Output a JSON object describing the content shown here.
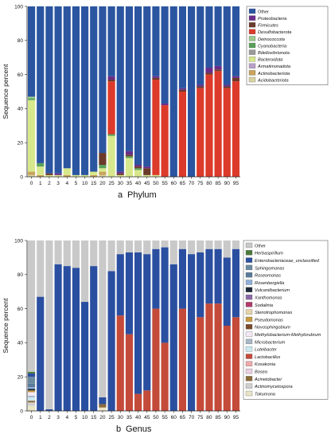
{
  "chart_data": [
    {
      "type": "bar",
      "stacked": true,
      "caption": "Phylum",
      "panel": "a",
      "ylabel": "Sequence percent",
      "ylim": [
        0,
        100
      ],
      "yticks": [
        0,
        20,
        40,
        60,
        80,
        100
      ],
      "categories": [
        "0",
        "1",
        "2",
        "3",
        "4",
        "5",
        "10",
        "15",
        "20",
        "25",
        "30",
        "35",
        "40",
        "45",
        "50",
        "55",
        "60",
        "65",
        "70",
        "75",
        "80",
        "85",
        "90",
        "95"
      ],
      "legend_position": "right",
      "series": [
        {
          "name": "Acidobacteriota",
          "color": "#d9d3a1",
          "values": [
            1,
            0,
            0,
            0,
            0,
            0,
            0,
            0,
            1,
            0,
            0,
            0,
            0,
            0,
            0,
            0,
            0,
            0,
            0,
            0,
            0,
            0,
            0,
            0
          ]
        },
        {
          "name": "Actinobacteriota",
          "color": "#c9a35a",
          "values": [
            2,
            1,
            0,
            0,
            1,
            0,
            0,
            1,
            2,
            0,
            0,
            0,
            0,
            0,
            0,
            0,
            0,
            0,
            0,
            0,
            0,
            0,
            0,
            0
          ]
        },
        {
          "name": "Armatimonadota",
          "color": "#b8a0c8",
          "values": [
            0,
            0,
            0,
            0,
            0,
            0,
            0,
            0,
            0,
            0,
            0,
            0,
            0,
            0,
            0,
            0,
            0,
            0,
            0,
            0,
            0,
            0,
            0,
            0
          ]
        },
        {
          "name": "Bacteroidota",
          "color": "#d7e88c",
          "values": [
            42,
            5,
            1,
            1,
            4,
            1,
            1,
            2,
            2,
            24,
            1,
            11,
            4,
            1,
            1,
            0,
            0,
            0,
            0,
            0,
            0,
            0,
            0,
            0
          ]
        },
        {
          "name": "Bdellovibrionota",
          "color": "#9a9a9a",
          "values": [
            0,
            0,
            0,
            0,
            0,
            0,
            0,
            0,
            0,
            0,
            0,
            0,
            0,
            0,
            0,
            0,
            0,
            0,
            0,
            0,
            0,
            0,
            0,
            0
          ]
        },
        {
          "name": "Cyanobacteria",
          "color": "#5aa15a",
          "values": [
            1,
            2,
            0,
            0,
            0,
            0,
            0,
            0,
            2,
            1,
            0,
            1,
            1,
            0,
            0,
            0,
            0,
            0,
            0,
            0,
            0,
            0,
            0,
            0
          ]
        },
        {
          "name": "Deinococcota",
          "color": "#9cc98f",
          "values": [
            1,
            0,
            0,
            0,
            0,
            0,
            0,
            0,
            0,
            0,
            0,
            0,
            0,
            0,
            0,
            0,
            0,
            0,
            0,
            0,
            0,
            0,
            0,
            0
          ]
        },
        {
          "name": "Desulfobacterota",
          "color": "#dc3a2a",
          "values": [
            0,
            0,
            0,
            0,
            0,
            0,
            0,
            0,
            0,
            31,
            0,
            0,
            0,
            0,
            56,
            42,
            0,
            50,
            0,
            52,
            60,
            62,
            52,
            56
          ]
        },
        {
          "name": "Firmicutes",
          "color": "#6b3a2a",
          "values": [
            0,
            0,
            1,
            0,
            0,
            0,
            0,
            0,
            7,
            1,
            1,
            1,
            1,
            4,
            1,
            0,
            0,
            1,
            0,
            1,
            1,
            1,
            1,
            2
          ]
        },
        {
          "name": "Proteobacteria",
          "color": "#6a2c8a",
          "values": [
            0,
            0,
            0,
            1,
            0,
            0,
            0,
            0,
            0,
            2,
            1,
            2,
            1,
            1,
            1,
            1,
            0,
            1,
            0,
            1,
            3,
            2,
            1,
            1
          ]
        },
        {
          "name": "Other",
          "color": "#2b55a0",
          "values": [
            53,
            92,
            98,
            98,
            95,
            99,
            99,
            97,
            86,
            41,
            97,
            85,
            93,
            94,
            41,
            57,
            100,
            48,
            100,
            46,
            36,
            35,
            46,
            41
          ]
        }
      ],
      "legend": [
        "Other",
        "Proteobacteria",
        "Firmicutes",
        "Desulfobacterota",
        "Deinococcota",
        "Cyanobacteria",
        "Bdellovibrionota",
        "Bacteroidota",
        "Armatimonadota",
        "Actinobacteriota",
        "Acidobacteriota"
      ]
    },
    {
      "type": "bar",
      "stacked": true,
      "caption": "Genus",
      "panel": "b",
      "ylabel": "Sequence percent",
      "ylim": [
        0,
        100
      ],
      "yticks": [
        0,
        20,
        40,
        60,
        80,
        100
      ],
      "categories": [
        "0",
        "1",
        "2",
        "3",
        "4",
        "5",
        "10",
        "15",
        "20",
        "25",
        "30",
        "35",
        "40",
        "45",
        "50",
        "55",
        "60",
        "65",
        "70",
        "75",
        "80",
        "85",
        "90",
        "95"
      ],
      "legend_position": "right",
      "series": [
        {
          "name": "Tokumona",
          "color": "#e9e4c4",
          "values": [
            3,
            0,
            0,
            0,
            0,
            0,
            0,
            0,
            2,
            0,
            0,
            0,
            0,
            0,
            0,
            0,
            0,
            0,
            0,
            0,
            0,
            0,
            0,
            0
          ]
        },
        {
          "name": "Actinomycetospora",
          "color": "#cfcfcf",
          "values": [
            2,
            0,
            0,
            0,
            0,
            0,
            0,
            0,
            0,
            0,
            0,
            0,
            0,
            0,
            0,
            0,
            0,
            0,
            0,
            0,
            0,
            0,
            0,
            0
          ]
        },
        {
          "name": "Acinetobacter",
          "color": "#8c6b3a",
          "values": [
            1,
            0,
            0,
            0,
            0,
            0,
            0,
            0,
            2,
            0,
            0,
            0,
            0,
            0,
            0,
            0,
            0,
            0,
            0,
            0,
            0,
            0,
            0,
            0
          ]
        },
        {
          "name": "Bosea",
          "color": "#e9cfe0",
          "values": [
            0,
            0,
            0,
            0,
            0,
            0,
            0,
            0,
            0,
            0,
            0,
            0,
            0,
            0,
            0,
            0,
            0,
            0,
            0,
            0,
            0,
            0,
            0,
            0
          ]
        },
        {
          "name": "Kosakonia",
          "color": "#f0a8a8",
          "values": [
            0,
            0,
            0,
            0,
            0,
            0,
            0,
            0,
            0,
            0,
            0,
            0,
            0,
            0,
            0,
            0,
            0,
            0,
            0,
            0,
            0,
            0,
            0,
            0
          ]
        },
        {
          "name": "Lactobacillus",
          "color": "#c44a3a",
          "values": [
            0,
            0,
            0,
            0,
            0,
            0,
            0,
            0,
            0,
            0,
            56,
            45,
            10,
            12,
            60,
            40,
            0,
            60,
            0,
            55,
            63,
            63,
            50,
            55
          ]
        },
        {
          "name": "Luteibacter",
          "color": "#c9e9f0",
          "values": [
            2,
            0,
            0,
            0,
            0,
            0,
            0,
            0,
            0,
            0,
            0,
            0,
            0,
            0,
            0,
            0,
            0,
            0,
            0,
            0,
            0,
            0,
            0,
            0
          ]
        },
        {
          "name": "Microbacterium",
          "color": "#a9b8c9",
          "values": [
            1,
            0,
            0,
            0,
            0,
            0,
            0,
            0,
            0,
            0,
            0,
            0,
            0,
            0,
            0,
            0,
            0,
            0,
            0,
            0,
            0,
            0,
            0,
            0
          ]
        },
        {
          "name": "Methylobacterium-Methylorubrum",
          "color": "#f4e8f4",
          "values": [
            2,
            0,
            0,
            0,
            0,
            0,
            0,
            0,
            0,
            0,
            0,
            0,
            0,
            0,
            0,
            0,
            0,
            0,
            0,
            0,
            0,
            0,
            0,
            0
          ]
        },
        {
          "name": "Novosphingobium",
          "color": "#7a4a2a",
          "values": [
            0,
            0,
            0,
            0,
            0,
            0,
            0,
            0,
            0,
            0,
            0,
            0,
            0,
            0,
            0,
            0,
            0,
            0,
            0,
            0,
            0,
            0,
            0,
            0
          ]
        },
        {
          "name": "Pseudomonas",
          "color": "#c89a40",
          "values": [
            1,
            0,
            0,
            0,
            0,
            0,
            0,
            0,
            0,
            0,
            0,
            0,
            0,
            0,
            0,
            0,
            0,
            0,
            0,
            0,
            0,
            0,
            0,
            0
          ]
        },
        {
          "name": "Stenotrophomonas",
          "color": "#e6d3a8",
          "values": [
            0,
            0,
            0,
            0,
            0,
            0,
            0,
            0,
            0,
            0,
            0,
            0,
            0,
            0,
            0,
            0,
            0,
            0,
            0,
            0,
            0,
            0,
            0,
            0
          ]
        },
        {
          "name": "Sodalinia",
          "color": "#b03a6a",
          "values": [
            0,
            0,
            0,
            0,
            0,
            0,
            0,
            0,
            0,
            0,
            0,
            0,
            0,
            0,
            0,
            0,
            0,
            0,
            0,
            0,
            0,
            0,
            0,
            0
          ]
        },
        {
          "name": "Xanthomonas",
          "color": "#8a6aa8",
          "values": [
            0,
            0,
            0,
            0,
            0,
            0,
            0,
            0,
            0,
            0,
            0,
            0,
            0,
            0,
            0,
            0,
            0,
            0,
            0,
            0,
            0,
            0,
            0,
            0
          ]
        },
        {
          "name": "Vulcaniibacterium",
          "color": "#1e2a3a",
          "values": [
            1,
            0,
            0,
            0,
            0,
            0,
            0,
            0,
            0,
            0,
            0,
            0,
            0,
            0,
            0,
            0,
            0,
            0,
            0,
            0,
            0,
            0,
            0,
            0
          ]
        },
        {
          "name": "Rosenbergiella",
          "color": "#8fb0d9",
          "values": [
            1,
            0,
            0,
            0,
            0,
            0,
            0,
            0,
            0,
            0,
            0,
            0,
            0,
            0,
            0,
            0,
            0,
            0,
            0,
            0,
            0,
            0,
            0,
            0
          ]
        },
        {
          "name": "Roseomonas",
          "color": "#5a7a9a",
          "values": [
            2,
            0,
            0,
            0,
            0,
            0,
            0,
            0,
            0,
            0,
            0,
            0,
            0,
            0,
            0,
            0,
            0,
            0,
            0,
            0,
            0,
            0,
            0,
            0
          ]
        },
        {
          "name": "Sphingomonas",
          "color": "#6a8aa0",
          "values": [
            4,
            0,
            0,
            0,
            0,
            0,
            0,
            0,
            0,
            0,
            0,
            0,
            0,
            0,
            0,
            0,
            0,
            0,
            0,
            0,
            0,
            0,
            0,
            0
          ]
        },
        {
          "name": "Enterobacteriaceae_unclassified",
          "color": "#2b4fa0",
          "values": [
            2,
            67,
            1,
            86,
            85,
            84,
            64,
            85,
            4,
            82,
            36,
            48,
            83,
            80,
            35,
            56,
            86,
            35,
            92,
            38,
            32,
            32,
            40,
            40
          ]
        },
        {
          "name": "Herbaspirillum",
          "color": "#4a7a3a",
          "values": [
            1,
            0,
            0,
            0,
            0,
            0,
            0,
            0,
            0,
            0,
            0,
            0,
            0,
            0,
            0,
            0,
            0,
            0,
            0,
            0,
            0,
            0,
            0,
            0
          ]
        },
        {
          "name": "Other",
          "color": "#c9c9c9",
          "values": [
            77,
            33,
            99,
            14,
            15,
            16,
            36,
            15,
            92,
            18,
            8,
            7,
            7,
            8,
            5,
            4,
            14,
            5,
            8,
            7,
            5,
            5,
            10,
            5
          ]
        }
      ],
      "legend": [
        "Other",
        "Herbaspirillum",
        "Enterobacteriaceae_unclassified",
        "Sphingomonas",
        "Roseomonas",
        "Rosenbergiella",
        "Vulcaniibacterium",
        "Xanthomonas",
        "Sodalinia",
        "Stenotrophomonas",
        "Pseudomonas",
        "Novosphingobium",
        "Methylobacterium-Methylorubrum",
        "Microbacterium",
        "Luteibacter",
        "Lactobacillus",
        "Kosakonia",
        "Bosea",
        "Acinetobacter",
        "Actinomycetospora",
        "Tokumona"
      ]
    }
  ]
}
